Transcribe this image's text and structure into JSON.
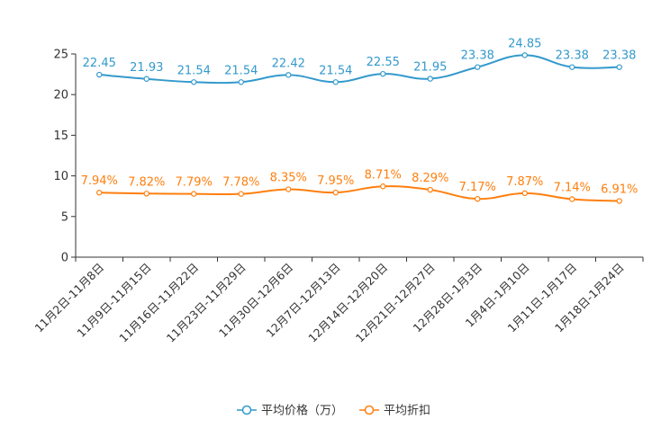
{
  "chart_data": {
    "type": "line",
    "title": "",
    "xlabel": "",
    "ylabel": "",
    "ylim": [
      0,
      25
    ],
    "yticks": [
      0,
      5,
      10,
      15,
      20,
      25
    ],
    "grid": false,
    "legend_position": "bottom-center",
    "categories": [
      "11月2日-11月8日",
      "11月9日-11月15日",
      "11月16日-11月22日",
      "11月23日-11月29日",
      "11月30日-12月6日",
      "12月7日-12月13日",
      "12月14日-12月20日",
      "12月21日-12月27日",
      "12月28日-1月3日",
      "1月4日-1月10日",
      "1月11日-1月17日",
      "1月18日-1月24日"
    ],
    "series": [
      {
        "name": "平均价格（万）",
        "color": "#3399cc",
        "values": [
          22.45,
          21.93,
          21.54,
          21.54,
          22.42,
          21.54,
          22.55,
          21.95,
          23.38,
          24.85,
          23.38,
          23.38
        ],
        "labels": [
          "22.45",
          "21.93",
          "21.54",
          "21.54",
          "22.42",
          "21.54",
          "22.55",
          "21.95",
          "23.38",
          "24.85",
          "23.38",
          "23.38"
        ]
      },
      {
        "name": "平均折扣",
        "color": "#ff7f0e",
        "values": [
          7.94,
          7.82,
          7.79,
          7.78,
          8.35,
          7.95,
          8.71,
          8.29,
          7.17,
          7.87,
          7.14,
          6.91
        ],
        "labels": [
          "7.94%",
          "7.82%",
          "7.79%",
          "7.78%",
          "8.35%",
          "7.95%",
          "8.71%",
          "8.29%",
          "7.17%",
          "7.87%",
          "7.14%",
          "6.91%"
        ]
      }
    ]
  }
}
